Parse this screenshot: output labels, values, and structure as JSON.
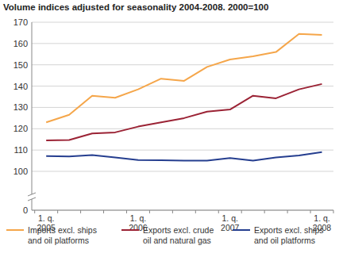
{
  "chart_data": {
    "type": "line",
    "title": "Volume indices adjusted for seasonality 2004-2008. 2000=100",
    "categories": [
      "1. q.\n2005",
      null,
      null,
      null,
      "1. q.\n2006",
      null,
      null,
      null,
      "1. q.\n2007",
      null,
      null,
      null,
      "1. q.\n2008"
    ],
    "series": [
      {
        "name": "Imports excl. ships and oil platforms",
        "color": "#f5a64a",
        "values": [
          123,
          126.5,
          135.5,
          134.5,
          138.5,
          143.5,
          142.5,
          149,
          152.5,
          154,
          156,
          164.5,
          164
        ]
      },
      {
        "name": "Exports excl. crude oil and natural gas",
        "color": "#9b2335",
        "values": [
          114.5,
          114.7,
          117.8,
          118.3,
          121,
          123,
          125,
          128,
          129,
          135.5,
          134.3,
          138.5,
          141
        ]
      },
      {
        "name": "Exports excl. ships and oil platforms",
        "color": "#253e8f",
        "values": [
          107.2,
          107,
          107.6,
          106.5,
          105.3,
          105.2,
          105,
          105,
          106.2,
          105,
          106.5,
          107.5,
          109
        ]
      }
    ],
    "ylim": [
      0,
      170
    ],
    "yticks": [
      0,
      100,
      110,
      120,
      130,
      140,
      150,
      160,
      170
    ],
    "grid": true,
    "legend": "bottom"
  }
}
